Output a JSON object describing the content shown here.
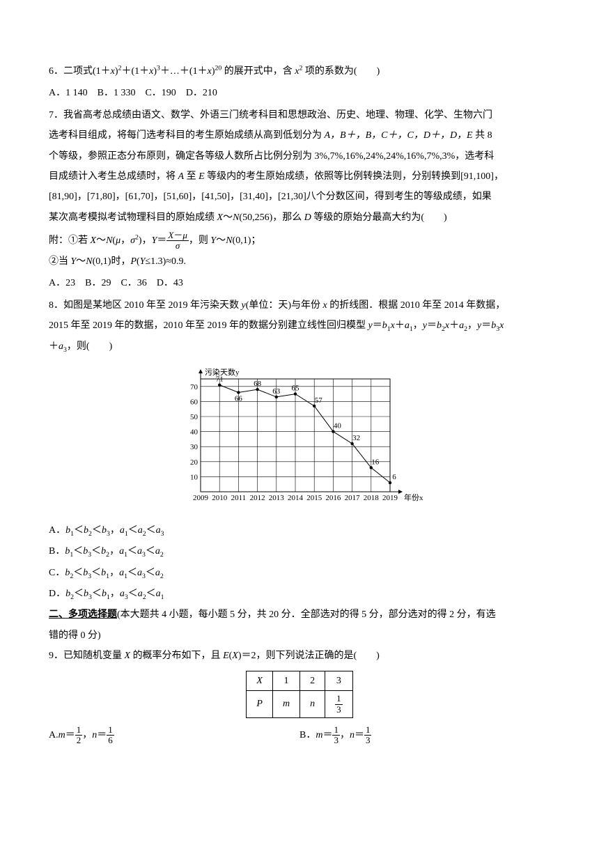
{
  "q6": {
    "text_pre": "6．二项式(1＋",
    "x": "x",
    "p2": "2",
    "plus1": "＋(1＋",
    "p3": "3",
    "plus2": "＋…＋(1＋",
    "p20": "20",
    "text_mid": " 的展开式中，含 ",
    "xsq": "x",
    "psq": "2",
    "text_post": " 项的系数为(　　)",
    "A": "A．1 140",
    "B": "B．1 330",
    "C": "C．190",
    "D": "D．210"
  },
  "q7": {
    "l1": "7．我省高考总成绩由语文、数学、外语三门统考科目和思想政治、历史、地理、物理、化学、生物六门",
    "l2a": "选考科目组成，将每门选考科目的考生原始成绩从高到低划分为 ",
    "l2_grades": "A，B＋，B，C＋，C，D＋，D，E",
    "l2b": " 共 8",
    "l3": "个等级，参照正态分布原则，确定各等级人数所占比例分别为 3%,7%,16%,24%,24%,16%,7%,3%，选考科",
    "l4a": "目成绩计入考生总成绩时，将 ",
    "l4A": "A",
    "l4b": " 至 ",
    "l4E": "E",
    "l4c": " 等级内的考生原始成绩，依照等比例转换法则，分别转换到[91,100]，",
    "l5": "[81,90]，[71,80]，[61,70]，[51,60]，[41,50]，[31,40]，[21,30]八个分数区间，得到考生的等级成绩，如果",
    "l6a": "某次高考模拟考试物理科目的原始成绩 ",
    "l6X": "X",
    "l6b": "～",
    "l6N": "N",
    "l6c": "(50,256)，那么 ",
    "l6D": "D",
    "l6d": " 等级的原始分最高大约为(　　)",
    "att1a": "附：①若 ",
    "att1X": "X",
    "att1b": "～",
    "att1N": "N",
    "att1c": "(",
    "att1mu": "μ",
    "att1d": "，",
    "att1sig": "σ",
    "att1sq": "2",
    "att1e": ")，",
    "att1Y": "Y",
    "att1f": "＝",
    "frac_num_a": "X",
    "frac_num_b": "－",
    "frac_num_c": "μ",
    "frac_den": "σ",
    "att1g": "，则 ",
    "att1Y2": "Y",
    "att1h": "～",
    "att1N2": "N",
    "att1i": "(0,1)；",
    "att2a": "②当 ",
    "att2Y": "Y",
    "att2b": "～",
    "att2N": "N",
    "att2c": "(0,1)时，",
    "att2P": "P",
    "att2d": "(",
    "att2Y2": "Y",
    "att2e": "≤1.3)≈0.9.",
    "A": "A．23",
    "B": "B．29",
    "C": "C．36",
    "D": "D．43"
  },
  "q8": {
    "l1a": "8．如图是某地区 2010 年至 2019 年污染天数 ",
    "l1y": "y",
    "l1b": "(单位：天)与年份 ",
    "l1x": "x",
    "l1c": " 的折线图．根据 2010 年至 2014 年数据，",
    "l2a": "2015 年至 2019 年的数据，2010 年至 2019 年的数据分别建立线性回归模型 ",
    "l2eq1a": "y",
    "l2eq1b": "＝",
    "l2eq1c": "b",
    "l2eq1s1": "1",
    "l2eq1d": "x",
    "l2eq1e": "＋",
    "l2eq1f": "a",
    "l2eq1s2": "1",
    "l2sep1": "，",
    "l2eq2a": "y",
    "l2eq2b": "＝",
    "l2eq2c": "b",
    "l2eq2s1": "2",
    "l2eq2d": "x",
    "l2eq2e": "＋",
    "l2eq2f": "a",
    "l2eq2s2": "2",
    "l2sep2": "，",
    "l2eq3a": "y",
    "l2eq3b": "＝",
    "l2eq3c": "b",
    "l2eq3s1": "3",
    "l2eq3d": "x",
    "l3a": "＋",
    "l3f": "a",
    "l3s": "3",
    "l3b": "，则(　　)",
    "chart": {
      "type": "line",
      "ylabel": "污染天数y",
      "xlabel": "年份x",
      "x_categories": [
        "2009",
        "2010",
        "2011",
        "2012",
        "2013",
        "2014",
        "2015",
        "2016",
        "2017",
        "2018",
        "2019"
      ],
      "values": [
        null,
        71,
        66,
        68,
        63,
        65,
        57,
        40,
        32,
        16,
        6
      ],
      "value_labels": [
        "",
        "71",
        "66",
        "68",
        "63",
        "65",
        "57",
        "40",
        "32",
        "16",
        "6"
      ],
      "ylim": [
        0,
        75
      ],
      "ytick_step": 10,
      "yticks": [
        10,
        20,
        30,
        40,
        50,
        60,
        70
      ],
      "line_color": "#000000",
      "point_color": "#000000",
      "grid_color": "#000000",
      "background_color": "#ffffff",
      "marker": "dot",
      "line_width": 1
    },
    "optA_pre": "A．",
    "optA": "b₁＜b₂＜b₃，a₁＜a₂＜a₃",
    "optB_pre": "B．",
    "optB": "b₁＜b₃＜b₂，a₁＜a₃＜a₂",
    "optC_pre": "C．",
    "optC": "b₂＜b₃＜b₁，a₁＜a₃＜a₂",
    "optD_pre": "D．",
    "optD": "b₂＜b₃＜b₁，a₃＜a₂＜a₁"
  },
  "section2": "二、多项选择题(本大题共 4 小题，每小题 5 分，共 20 分．全部选对的得 5 分，部分选对的得 2 分，有选错的得 0 分)",
  "section2_head": "二、多项选择题",
  "section2_rest": "(本大题共 4 小题，每小题 5 分，共 20 分．全部选对的得 5 分，部分选对的得 2 分，有选",
  "section2_rest2": "错的得 0 分)",
  "q9": {
    "l1a": "9．已知随机变量 ",
    "l1X": "X",
    "l1b": " 的概率分布如下，且 ",
    "l1E": "E",
    "l1c": "(",
    "l1X2": "X",
    "l1d": ")＝2，则下列说法正确的是(　　)",
    "table": {
      "type": "table",
      "columns": [
        "X",
        "1",
        "2",
        "3"
      ],
      "row2_head": "P",
      "row2": [
        "m",
        "n"
      ],
      "frac_num": "1",
      "frac_den": "3"
    },
    "optA_pre": "A.",
    "optA_m": "m",
    "optA_eq": "＝",
    "optA_mnum": "1",
    "optA_mden": "2",
    "optA_sep": "，",
    "optA_n": "n",
    "optA_eq2": "＝",
    "optA_nnum": "1",
    "optA_nden": "6",
    "optB_pre": "B．",
    "optB_m": "m",
    "optB_eq": "＝",
    "optB_mnum": "1",
    "optB_mden": "3",
    "optB_sep": "，",
    "optB_n": "n",
    "optB_eq2": "＝",
    "optB_nnum": "1",
    "optB_nden": "3"
  }
}
